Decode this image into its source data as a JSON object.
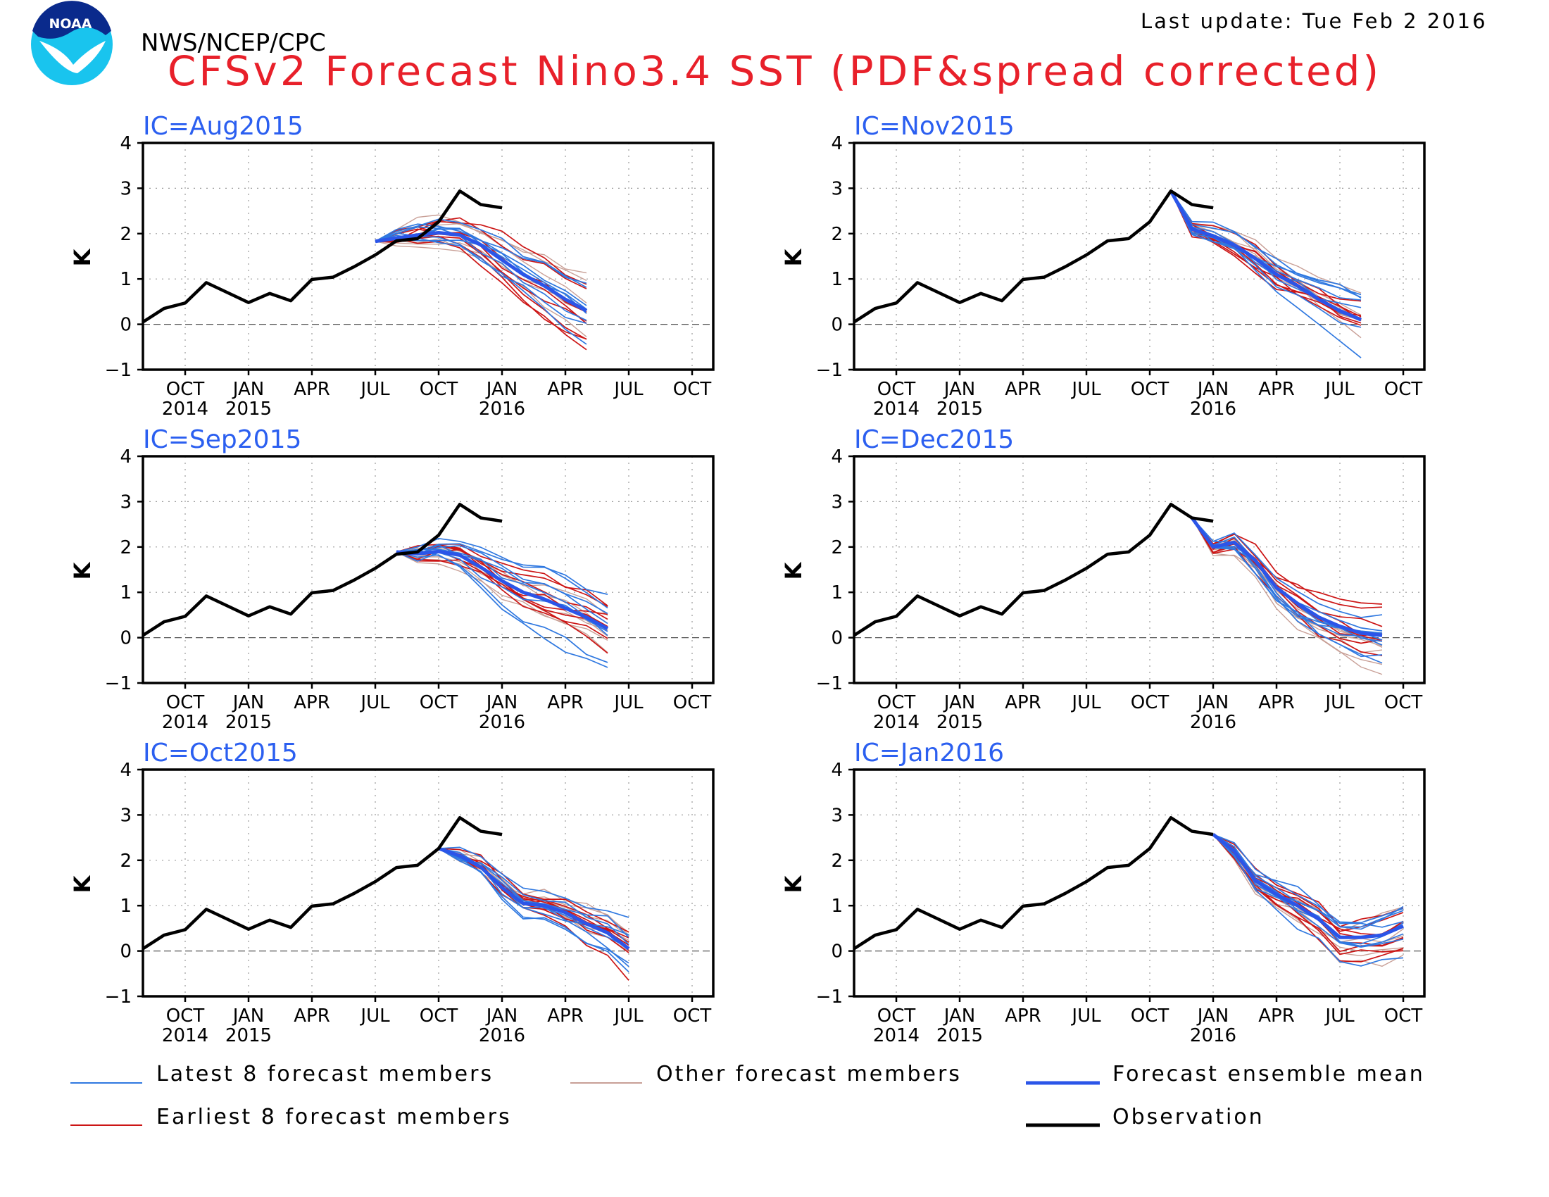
{
  "header": {
    "agency": "NWS/NCEP/CPC",
    "title": "CFSv2 Forecast Nino3.4 SST (PDF&spread corrected)",
    "last_update": "Last update: Tue Feb  2 2016",
    "logo_text": "NOAA"
  },
  "colors": {
    "title": "#e8202a",
    "ic_label": "#2b5ff0",
    "observation": "#000000",
    "ensemble_mean": "#2b55e8",
    "latest_members": "#2f78e0",
    "earliest_members": "#cc1515",
    "other_members": "#c89f96",
    "logo_bg": "#19c4ee",
    "logo_dark": "#0a2a8c"
  },
  "legend": {
    "latest": "Latest 8 forecast members",
    "other": "Other forecast members",
    "mean": "Forecast ensemble mean",
    "earliest": "Earliest 8 forecast members",
    "observation": "Observation"
  },
  "chart_data": {
    "type": "line",
    "ylabel": "K",
    "ylim": [
      -1,
      4
    ],
    "yticks": [
      -1,
      0,
      1,
      2,
      3,
      4
    ],
    "xlim": [
      "2014-08",
      "2016-11"
    ],
    "xtick_months": [
      "OCT",
      "JAN",
      "APR",
      "JUL",
      "OCT",
      "JAN",
      "APR",
      "JUL",
      "OCT"
    ],
    "xtick_years": [
      "2014",
      "2015",
      "",
      "",
      "",
      "2016",
      "",
      "",
      ""
    ],
    "xtick_dates": [
      "2014-10",
      "2015-01",
      "2015-04",
      "2015-07",
      "2015-10",
      "2016-01",
      "2016-04",
      "2016-07",
      "2016-10"
    ],
    "observation": {
      "x": [
        "2014-08",
        "2014-09",
        "2014-10",
        "2014-11",
        "2014-12",
        "2015-01",
        "2015-02",
        "2015-03",
        "2015-04",
        "2015-05",
        "2015-06",
        "2015-07",
        "2015-08",
        "2015-09",
        "2015-10",
        "2015-11",
        "2015-12",
        "2016-01"
      ],
      "y": [
        0.05,
        0.35,
        0.47,
        0.92,
        0.7,
        0.48,
        0.68,
        0.52,
        0.99,
        1.04,
        1.27,
        1.53,
        1.84,
        1.89,
        2.26,
        2.94,
        2.64,
        2.57
      ]
    },
    "panels": [
      {
        "ic_label": "IC=Aug2015",
        "obs_end": "2016-01",
        "mean": {
          "x": [
            "2015-07",
            "2015-08",
            "2015-09",
            "2015-10",
            "2015-11",
            "2015-12",
            "2016-01",
            "2016-02",
            "2016-03",
            "2016-04",
            "2016-05"
          ],
          "y": [
            1.83,
            1.9,
            1.97,
            2.02,
            1.97,
            1.75,
            1.42,
            1.1,
            0.85,
            0.55,
            0.3
          ]
        }
      },
      {
        "ic_label": "IC=Nov2015",
        "obs_end": "2016-01",
        "mean": {
          "x": [
            "2015-11",
            "2015-12",
            "2016-01",
            "2016-02",
            "2016-03",
            "2016-04",
            "2016-05",
            "2016-06",
            "2016-07",
            "2016-08"
          ],
          "y": [
            2.94,
            2.1,
            1.95,
            1.75,
            1.45,
            1.1,
            0.85,
            0.55,
            0.3,
            0.1
          ]
        }
      },
      {
        "ic_label": "IC=Sep2015",
        "obs_end": "2016-01",
        "mean": {
          "x": [
            "2015-08",
            "2015-09",
            "2015-10",
            "2015-11",
            "2015-12",
            "2016-01",
            "2016-02",
            "2016-03",
            "2016-04",
            "2016-05",
            "2016-06"
          ],
          "y": [
            1.89,
            1.85,
            1.9,
            1.82,
            1.55,
            1.25,
            1.0,
            0.85,
            0.65,
            0.45,
            0.2
          ]
        }
      },
      {
        "ic_label": "IC=Dec2015",
        "obs_end": "2016-01",
        "mean": {
          "x": [
            "2015-12",
            "2016-01",
            "2016-02",
            "2016-03",
            "2016-04",
            "2016-05",
            "2016-06",
            "2016-07",
            "2016-08",
            "2016-09"
          ],
          "y": [
            2.64,
            2.0,
            2.1,
            1.7,
            1.1,
            0.75,
            0.45,
            0.25,
            0.1,
            0.05
          ]
        }
      },
      {
        "ic_label": "IC=Oct2015",
        "obs_end": "2016-01",
        "mean": {
          "x": [
            "2015-10",
            "2015-11",
            "2015-12",
            "2016-01",
            "2016-02",
            "2016-03",
            "2016-04",
            "2016-05",
            "2016-06",
            "2016-07"
          ],
          "y": [
            2.26,
            2.1,
            1.85,
            1.4,
            1.05,
            1.0,
            0.85,
            0.6,
            0.4,
            0.05
          ]
        }
      },
      {
        "ic_label": "IC=Jan2016",
        "obs_end": "2016-01",
        "mean": {
          "x": [
            "2016-01",
            "2016-02",
            "2016-03",
            "2016-04",
            "2016-05",
            "2016-06",
            "2016-07",
            "2016-08",
            "2016-09",
            "2016-10"
          ],
          "y": [
            2.57,
            2.2,
            1.55,
            1.25,
            1.0,
            0.7,
            0.3,
            0.3,
            0.35,
            0.55
          ]
        }
      }
    ]
  }
}
